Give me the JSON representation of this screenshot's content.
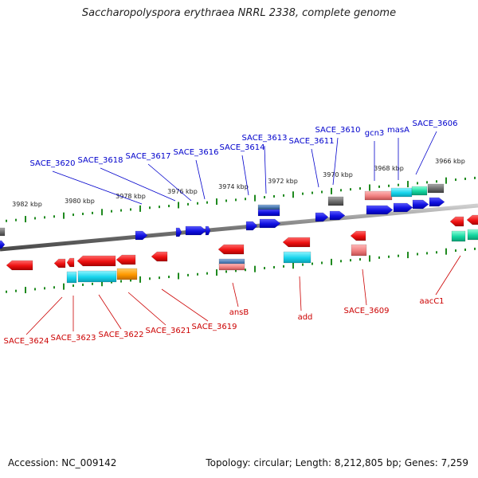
{
  "title": "Saccharopolyspora erythraea NRRL 2338, complete genome",
  "footer": {
    "accession": "Accession: NC_009142",
    "topology": "Topology: circular; Length: 8,212,805 bp; Genes: 7,259"
  },
  "colors": {
    "backbone": "#8a8a8a",
    "tick": "#1f8a1f",
    "forward_label": "#0000cc",
    "reverse_label": "#cc0000",
    "gene_blue": "#1a1ae6",
    "gene_red": "#e61a1a",
    "gene_cyan": "#19d0e6",
    "gene_teal": "#14d6a0",
    "gene_orange": "#ff9900",
    "gene_pink": "#f08080",
    "gene_gray": "#6b6b6b",
    "gene_steel": "#4a78b0"
  },
  "position_labels": [
    "3966 kbp",
    "3968 kbp",
    "3970 kbp",
    "3972 kbp",
    "3974 kbp",
    "3976 kbp",
    "3978 kbp",
    "3980 kbp",
    "3982 kbp"
  ],
  "forward_genes": [
    "SACE_3606",
    "masA",
    "gcn3",
    "SACE_3610",
    "SACE_3611",
    "SACE_3613",
    "SACE_3614",
    "SACE_3616",
    "SACE_3617",
    "SACE_3618",
    "SACE_3620"
  ],
  "reverse_genes": [
    "aacC1",
    "SACE_3609",
    "add",
    "ansB",
    "SACE_3619",
    "SACE_3621",
    "SACE_3622",
    "SACE_3623",
    "SACE_3624"
  ]
}
